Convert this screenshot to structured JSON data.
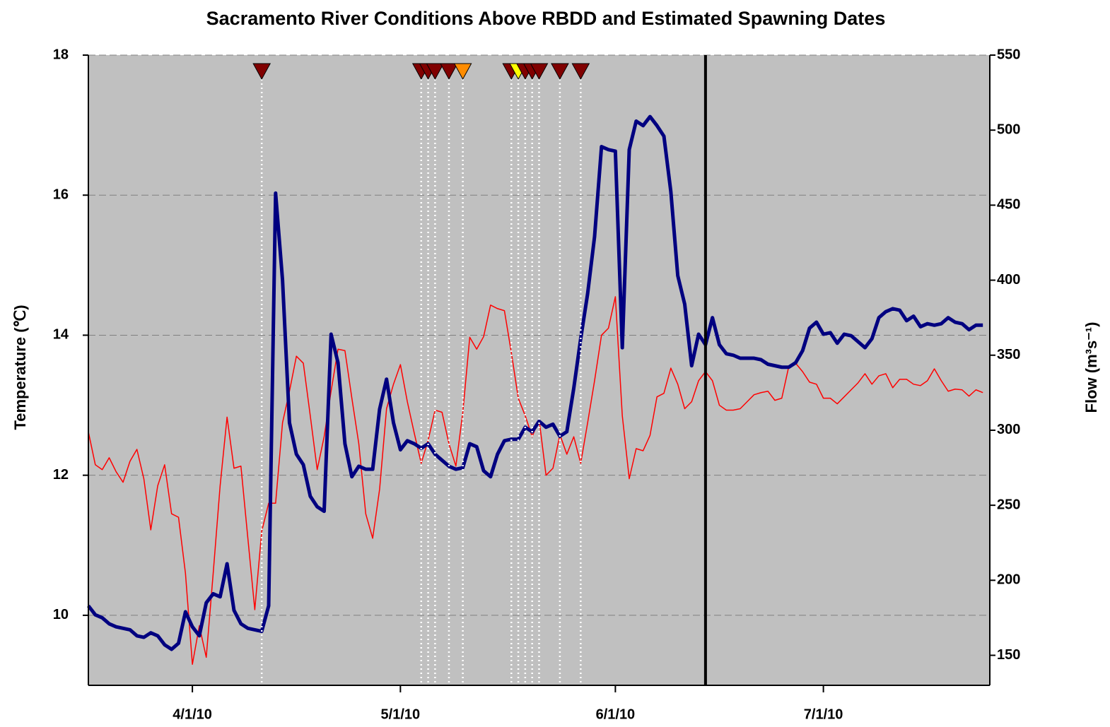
{
  "chart_data": {
    "type": "line",
    "title": "Sacramento River Conditions Above RBDD and Estimated Spawning Dates",
    "ylabel": "Temperature (℃)",
    "y2label": "Flow (m³s⁻¹)",
    "x": [
      "3/17/10",
      "3/18/10",
      "3/19/10",
      "3/20/10",
      "3/21/10",
      "3/22/10",
      "3/23/10",
      "3/24/10",
      "3/25/10",
      "3/26/10",
      "3/27/10",
      "3/28/10",
      "3/29/10",
      "3/30/10",
      "3/31/10",
      "4/1/10",
      "4/2/10",
      "4/3/10",
      "4/4/10",
      "4/5/10",
      "4/6/10",
      "4/7/10",
      "4/8/10",
      "4/9/10",
      "4/10/10",
      "4/11/10",
      "4/12/10",
      "4/13/10",
      "4/14/10",
      "4/15/10",
      "4/16/10",
      "4/17/10",
      "4/18/10",
      "4/19/10",
      "4/20/10",
      "4/21/10",
      "4/22/10",
      "4/23/10",
      "4/24/10",
      "4/25/10",
      "4/26/10",
      "4/27/10",
      "4/28/10",
      "4/29/10",
      "4/30/10",
      "5/1/10",
      "5/2/10",
      "5/3/10",
      "5/4/10",
      "5/5/10",
      "5/6/10",
      "5/7/10",
      "5/8/10",
      "5/9/10",
      "5/10/10",
      "5/11/10",
      "5/12/10",
      "5/13/10",
      "5/14/10",
      "5/15/10",
      "5/16/10",
      "5/17/10",
      "5/18/10",
      "5/19/10",
      "5/20/10",
      "5/21/10",
      "5/22/10",
      "5/23/10",
      "5/24/10",
      "5/25/10",
      "5/26/10",
      "5/27/10",
      "5/28/10",
      "5/29/10",
      "5/30/10",
      "5/31/10",
      "6/1/10",
      "6/2/10",
      "6/3/10",
      "6/4/10",
      "6/5/10",
      "6/6/10",
      "6/7/10",
      "6/8/10",
      "6/9/10",
      "6/10/10",
      "6/11/10",
      "6/12/10",
      "6/13/10",
      "6/14/10",
      "6/15/10",
      "6/16/10",
      "6/17/10",
      "6/18/10",
      "6/19/10",
      "6/20/10",
      "6/21/10",
      "6/22/10",
      "6/23/10",
      "6/24/10",
      "6/25/10",
      "6/26/10",
      "6/27/10",
      "6/28/10",
      "6/29/10",
      "6/30/10",
      "7/1/10",
      "7/2/10",
      "7/3/10",
      "7/4/10",
      "7/5/10",
      "7/6/10",
      "7/7/10",
      "7/8/10",
      "7/9/10",
      "7/10/10",
      "7/11/10",
      "7/12/10",
      "7/13/10",
      "7/14/10",
      "7/15/10",
      "7/16/10",
      "7/17/10",
      "7/18/10",
      "7/19/10",
      "7/20/10",
      "7/21/10",
      "7/22/10",
      "7/23/10",
      "7/24/10"
    ],
    "series": [
      {
        "color": "#ff0000",
        "values": [
          12.62,
          12.15,
          12.08,
          12.25,
          12.05,
          11.9,
          12.2,
          12.37,
          11.95,
          11.22,
          11.85,
          12.15,
          11.45,
          11.4,
          10.6,
          9.3,
          9.85,
          9.4,
          10.6,
          11.85,
          12.83,
          12.1,
          12.13,
          11.1,
          10.08,
          11.2,
          11.6,
          11.6,
          12.75,
          13.2,
          13.7,
          13.6,
          12.85,
          12.08,
          12.55,
          13.2,
          13.8,
          13.78,
          13.1,
          12.45,
          11.45,
          11.1,
          11.8,
          12.95,
          13.3,
          13.58,
          13.05,
          12.6,
          12.17,
          12.5,
          12.93,
          12.9,
          12.45,
          12.13,
          12.9,
          13.97,
          13.8,
          13.98,
          14.43,
          14.38,
          14.35,
          13.75,
          13.1,
          12.85,
          12.55,
          12.8,
          12.0,
          12.1,
          12.58,
          12.3,
          12.55,
          12.17,
          12.75,
          13.35,
          14.0,
          14.1,
          14.55,
          12.85,
          11.95,
          12.38,
          12.35,
          12.57,
          13.12,
          13.17,
          13.53,
          13.3,
          12.95,
          13.05,
          13.35,
          13.48,
          13.35,
          13.0,
          12.93,
          12.93,
          12.95,
          13.05,
          13.15,
          13.18,
          13.2,
          13.07,
          13.1,
          13.55,
          13.6,
          13.48,
          13.33,
          13.3,
          13.1,
          13.1,
          13.02,
          13.12,
          13.22,
          13.32,
          13.45,
          13.3,
          13.42,
          13.45,
          13.25,
          13.37,
          13.37,
          13.3,
          13.28,
          13.35,
          13.52,
          13.35,
          13.2,
          13.23,
          13.22,
          13.13,
          13.22,
          13.18
        ]
      },
      {
        "color": "#000080",
        "axis": "y2",
        "values": [
          183,
          177,
          175,
          171,
          169,
          168,
          167,
          163,
          162,
          165,
          163,
          157,
          154,
          158,
          179,
          169,
          163,
          185,
          191,
          189,
          211,
          180,
          171,
          168,
          167,
          166,
          183,
          458,
          400,
          305,
          284,
          277,
          256,
          249,
          246,
          364,
          345,
          291,
          269,
          276,
          274,
          274,
          314,
          334,
          305,
          287,
          293,
          291,
          288,
          291,
          284,
          280,
          276,
          274,
          275,
          291,
          289,
          273,
          269,
          284,
          293,
          294,
          294,
          302,
          299,
          306,
          302,
          304,
          296,
          299,
          328,
          361,
          391,
          429,
          489,
          487,
          486,
          355,
          487,
          506,
          503,
          509,
          503,
          496,
          459,
          403,
          384,
          343,
          364,
          357,
          375,
          357,
          351,
          350,
          348,
          348,
          348,
          347,
          344,
          343,
          342,
          342,
          345,
          353,
          368,
          372,
          364,
          365,
          358,
          364,
          363,
          359,
          355,
          361,
          375,
          379,
          381,
          380,
          373,
          376,
          369,
          371,
          370,
          371,
          375,
          372,
          371,
          367,
          370,
          370
        ]
      }
    ],
    "xlim": [
      "3/17/10",
      "7/25/10"
    ],
    "xticks": [
      "4/1/10",
      "5/1/10",
      "6/1/10",
      "7/1/10"
    ],
    "ylim": [
      9,
      18
    ],
    "yticks": [
      10,
      12,
      14,
      16,
      18
    ],
    "y2lim": [
      130,
      550
    ],
    "y2ticks": [
      150,
      200,
      250,
      300,
      350,
      400,
      450,
      500,
      550
    ],
    "grid": true,
    "background": "#c0c0c0",
    "event_line": "6/14/10",
    "spawning_dates": [
      {
        "x": "4/11/10",
        "color": "#800000"
      },
      {
        "x": "5/4/10",
        "color": "#800000"
      },
      {
        "x": "5/5/10",
        "color": "#800000"
      },
      {
        "x": "5/6/10",
        "color": "#800000"
      },
      {
        "x": "5/8/10",
        "color": "#800000"
      },
      {
        "x": "5/10/10",
        "color": "#ff8c00"
      },
      {
        "x": "5/17/10",
        "color": "#800000"
      },
      {
        "x": "5/18/10",
        "color": "#ffff00"
      },
      {
        "x": "5/19/10",
        "color": "#800000"
      },
      {
        "x": "5/20/10",
        "color": "#800000"
      },
      {
        "x": "5/21/10",
        "color": "#800000"
      },
      {
        "x": "5/24/10",
        "color": "#800000"
      },
      {
        "x": "5/27/10",
        "color": "#800000"
      }
    ]
  }
}
